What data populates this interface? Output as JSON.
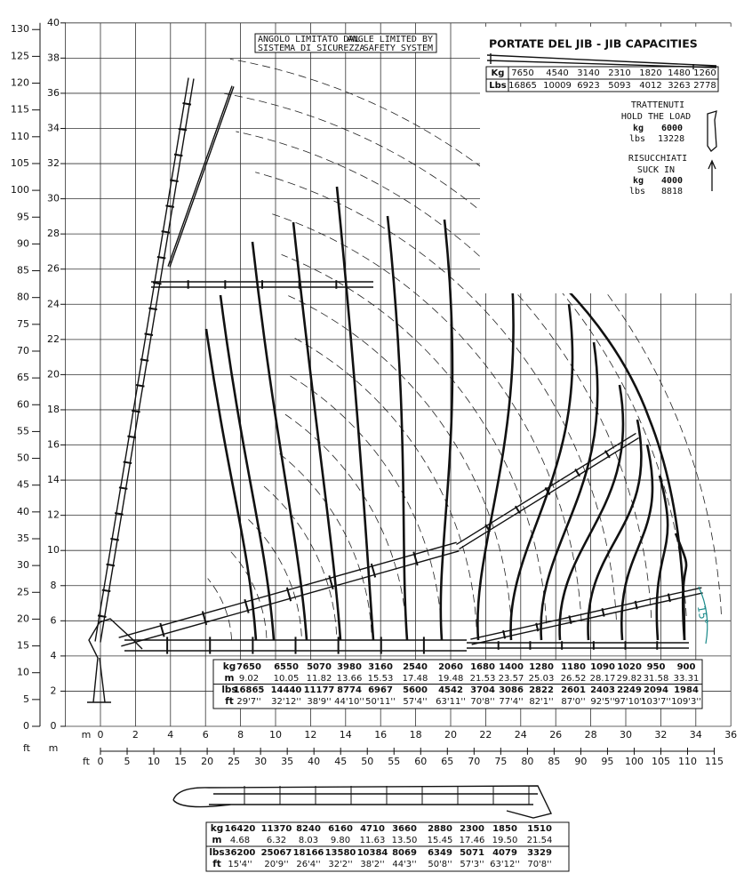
{
  "axes": {
    "left_ft_unit": "ft",
    "left_m_unit": "m",
    "left_ft_ticks": [
      0,
      5,
      10,
      15,
      20,
      25,
      30,
      35,
      40,
      45,
      50,
      55,
      60,
      65,
      70,
      75,
      80,
      85,
      90,
      95,
      100,
      105,
      110,
      115,
      120,
      125,
      130
    ],
    "left_m_ticks": [
      0,
      2,
      4,
      6,
      8,
      10,
      12,
      14,
      16,
      18,
      20,
      22,
      24,
      26,
      28,
      30,
      32,
      34,
      36,
      38,
      40
    ],
    "bottom_m_unit": "m",
    "bottom_ft_unit": "ft",
    "bottom_m_ticks": [
      0,
      2,
      4,
      6,
      8,
      10,
      12,
      14,
      16,
      18,
      20,
      22,
      24,
      26,
      28,
      30,
      32,
      34,
      36
    ],
    "bottom_ft_ticks": [
      0,
      5,
      10,
      15,
      20,
      25,
      30,
      35,
      40,
      45,
      50,
      55,
      60,
      65,
      70,
      75,
      80,
      85,
      90,
      95,
      100,
      105,
      110,
      115
    ]
  },
  "note": {
    "it_line1": "ANGOLO LIMITATO DAL",
    "it_line2": "SISTEMA DI SICUREZZA",
    "en_line1": "ANGLE LIMITED BY",
    "en_line2": "SAFETY SYSTEM"
  },
  "jib": {
    "title": "PORTATE DEL JIB  -  JIB CAPACITIES",
    "kg_label": "Kg",
    "lbs_label": "Lbs",
    "kg": [
      7650,
      4540,
      3140,
      2310,
      1820,
      1480,
      1260
    ],
    "lbs": [
      16865,
      10009,
      6923,
      5093,
      4012,
      3263,
      2778
    ]
  },
  "hold": {
    "line1": "TRATTENUTI",
    "line2": "HOLD THE LOAD",
    "kg_label": "kg",
    "kg": 6000,
    "lbs_label": "lbs",
    "lbs": 13228
  },
  "suck": {
    "line1": "RISUCCHIATI",
    "line2": "SUCK IN",
    "kg_label": "kg",
    "kg": 4000,
    "lbs_label": "lbs",
    "lbs": 8818
  },
  "angle_label": "15°",
  "main_table": {
    "row_labels": [
      "kg",
      "m",
      "lbs",
      "ft"
    ],
    "kg": [
      7650,
      6550,
      5070,
      3980,
      3160,
      2540,
      2060,
      1680,
      1400,
      1280,
      1180,
      1090,
      1020,
      950,
      900
    ],
    "m": [
      "9.02",
      "10.05",
      "11.82",
      "13.66",
      "15.53",
      "17.48",
      "19.48",
      "21.53",
      "23.57",
      "25.03",
      "26.52",
      "28.17",
      "29.82",
      "31.58",
      "33.31"
    ],
    "lbs": [
      16865,
      14440,
      11177,
      8774,
      6967,
      5600,
      4542,
      3704,
      3086,
      2822,
      2601,
      2403,
      2249,
      2094,
      1984
    ],
    "ft": [
      "29'7''",
      "32'12''",
      "38'9''",
      "44'10''",
      "50'11''",
      "57'4''",
      "63'11''",
      "70'8''",
      "77'4''",
      "82'1''",
      "87'0''",
      "92'5''",
      "97'10''",
      "103'7''",
      "109'3''"
    ]
  },
  "boom_table": {
    "row_labels": [
      "kg",
      "m",
      "lbs",
      "ft"
    ],
    "kg": [
      16420,
      11370,
      8240,
      6160,
      4710,
      3660,
      2880,
      2300,
      1850,
      1510
    ],
    "m": [
      "4.68",
      "6.32",
      "8.03",
      "9.80",
      "11.63",
      "13.50",
      "15.45",
      "17.46",
      "19.50",
      "21.54"
    ],
    "lbs": [
      36200,
      25067,
      18166,
      13580,
      10384,
      8069,
      6349,
      5071,
      4079,
      3329
    ],
    "ft": [
      "15'4''",
      "20'9''",
      "26'4''",
      "32'2''",
      "38'2''",
      "44'3''",
      "50'8''",
      "57'3''",
      "63'12''",
      "70'8''"
    ]
  }
}
